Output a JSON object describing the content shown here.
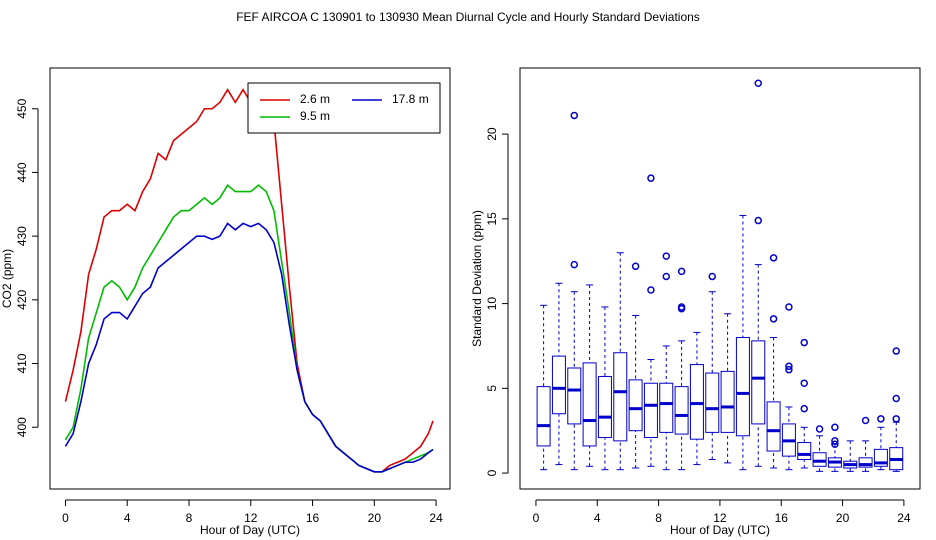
{
  "title": "FEF   AIRCOA C   130901 to 130930   Mean Diurnal Cycle and Hourly Standard Deviations",
  "chart_data": [
    {
      "type": "line",
      "x_label": "Hour of Day (UTC)",
      "y_label": "CO2 (ppm)",
      "xlim": [
        -1,
        24.9
      ],
      "ylim": [
        390.3,
        456.4
      ],
      "xticks": [
        0,
        4,
        8,
        12,
        16,
        20,
        24
      ],
      "yticks": [
        400,
        410,
        420,
        430,
        440,
        450
      ],
      "legend": "topright",
      "x": [
        0,
        0.5,
        1,
        1.5,
        2,
        2.5,
        3,
        3.5,
        4,
        4.5,
        5,
        5.5,
        6,
        6.5,
        7,
        7.5,
        8,
        8.5,
        9,
        9.5,
        10,
        10.5,
        11,
        11.5,
        12,
        12.5,
        13,
        13.5,
        14,
        14.5,
        15,
        15.5,
        16,
        16.5,
        17,
        17.5,
        18,
        18.5,
        19,
        19.5,
        20,
        20.5,
        21,
        21.5,
        22,
        22.5,
        23,
        23.5,
        23.8
      ],
      "series": [
        {
          "name": "2.6 m",
          "color": "#dd0000",
          "values": [
            404,
            409,
            415,
            424,
            428,
            433,
            434,
            434,
            435,
            434,
            437,
            439,
            443,
            442,
            445,
            446,
            447,
            448,
            450,
            450,
            451,
            453,
            451,
            453,
            451,
            452,
            452,
            448,
            435,
            422,
            410,
            404,
            402,
            401,
            399,
            397,
            396,
            395,
            394,
            393.5,
            393,
            393,
            394,
            394.5,
            395,
            396,
            397,
            399,
            401
          ]
        },
        {
          "name": "9.5 m",
          "color": "#00bb00",
          "values": [
            398,
            400,
            406,
            414,
            418,
            422,
            423,
            422,
            420,
            422,
            425,
            427,
            429,
            431,
            433,
            434,
            434,
            435,
            436,
            435,
            436,
            438,
            437,
            437,
            437,
            438,
            437,
            434,
            426,
            418,
            409,
            404,
            402,
            401,
            399,
            397,
            396,
            395,
            394,
            393.5,
            393,
            393,
            393.5,
            394,
            394.5,
            395,
            395.5,
            396,
            396.5
          ]
        },
        {
          "name": "17.8 m",
          "color": "#0000cc",
          "values": [
            397,
            399,
            404,
            410,
            413,
            417,
            418,
            418,
            417,
            419,
            421,
            422,
            425,
            426,
            427,
            428,
            429,
            430,
            430,
            429.5,
            430,
            432,
            431,
            432,
            431.5,
            432,
            431,
            429,
            424,
            416,
            409,
            404,
            402,
            401,
            399,
            397,
            396,
            395,
            394,
            393.5,
            393,
            393,
            393.5,
            394,
            394.5,
            394.5,
            395,
            396,
            396.5
          ]
        }
      ]
    },
    {
      "type": "boxplot",
      "x_label": "Hour of Day (UTC)",
      "y_label": "Standard Deviation (ppm)",
      "xlim": [
        -1.04,
        25.05
      ],
      "ylim": [
        -0.94,
        23.9
      ],
      "xticks": [
        0,
        4,
        8,
        12,
        16,
        20,
        24
      ],
      "yticks": [
        0,
        5,
        10,
        15,
        20
      ],
      "color": "#0000cc",
      "x": [
        0.5,
        1.5,
        2.5,
        3.5,
        4.5,
        5.5,
        6.5,
        7.5,
        8.5,
        9.5,
        10.5,
        11.5,
        12.5,
        13.5,
        14.5,
        15.5,
        16.5,
        17.5,
        18.5,
        19.5,
        20.5,
        21.5,
        22.5,
        23.5
      ],
      "boxes": [
        {
          "whislo": 0.2,
          "q1": 1.6,
          "med": 2.8,
          "q3": 5.1,
          "whishi": 9.9,
          "fliers": []
        },
        {
          "whislo": 0.5,
          "q1": 3.5,
          "med": 5.0,
          "q3": 6.9,
          "whishi": 11.2,
          "fliers": []
        },
        {
          "whislo": 0.2,
          "q1": 2.9,
          "med": 4.9,
          "q3": 6.2,
          "whishi": 10.7,
          "fliers": [
            21.1,
            12.3
          ]
        },
        {
          "whislo": 0.4,
          "q1": 1.6,
          "med": 3.1,
          "q3": 6.5,
          "whishi": 11.1,
          "fliers": []
        },
        {
          "whislo": 0.2,
          "q1": 2.1,
          "med": 3.3,
          "q3": 5.7,
          "whishi": 9.8,
          "fliers": []
        },
        {
          "whislo": 0.2,
          "q1": 1.9,
          "med": 4.8,
          "q3": 7.1,
          "whishi": 13.0,
          "fliers": []
        },
        {
          "whislo": 0.3,
          "q1": 2.5,
          "med": 3.8,
          "q3": 5.5,
          "whishi": 9.3,
          "fliers": [
            12.2
          ]
        },
        {
          "whislo": 0.4,
          "q1": 2.1,
          "med": 4.0,
          "q3": 5.3,
          "whishi": 6.7,
          "fliers": [
            17.4,
            10.8
          ]
        },
        {
          "whislo": 0.2,
          "q1": 2.4,
          "med": 4.1,
          "q3": 5.3,
          "whishi": 7.5,
          "fliers": [
            12.8,
            11.6
          ]
        },
        {
          "whislo": 0.2,
          "q1": 2.3,
          "med": 3.4,
          "q3": 5.1,
          "whishi": 7.8,
          "fliers": [
            11.9,
            9.8,
            9.7
          ]
        },
        {
          "whislo": 0.5,
          "q1": 2.0,
          "med": 4.1,
          "q3": 6.4,
          "whishi": 8.3,
          "fliers": []
        },
        {
          "whislo": 0.8,
          "q1": 2.4,
          "med": 3.8,
          "q3": 5.9,
          "whishi": 10.7,
          "fliers": [
            11.6
          ]
        },
        {
          "whislo": 0.6,
          "q1": 2.4,
          "med": 3.9,
          "q3": 6.0,
          "whishi": 9.4,
          "fliers": []
        },
        {
          "whislo": 0.2,
          "q1": 2.2,
          "med": 4.7,
          "q3": 8.0,
          "whishi": 15.2,
          "fliers": []
        },
        {
          "whislo": 0.4,
          "q1": 2.9,
          "med": 5.6,
          "q3": 7.8,
          "whishi": 12.3,
          "fliers": [
            23.0,
            14.9
          ]
        },
        {
          "whislo": 0.3,
          "q1": 1.3,
          "med": 2.5,
          "q3": 4.2,
          "whishi": 8.0,
          "fliers": [
            12.7,
            9.1
          ]
        },
        {
          "whislo": 0.2,
          "q1": 1.0,
          "med": 1.9,
          "q3": 2.9,
          "whishi": 3.9,
          "fliers": [
            9.8,
            6.3,
            6.1
          ]
        },
        {
          "whislo": 0.3,
          "q1": 0.8,
          "med": 1.1,
          "q3": 1.8,
          "whishi": 2.7,
          "fliers": [
            7.7,
            5.3,
            3.8
          ]
        },
        {
          "whislo": 0.1,
          "q1": 0.4,
          "med": 0.7,
          "q3": 1.2,
          "whishi": 2.2,
          "fliers": [
            2.6
          ]
        },
        {
          "whislo": 0.1,
          "q1": 0.35,
          "med": 0.65,
          "q3": 0.9,
          "whishi": 1.7,
          "fliers": [
            2.7,
            1.9,
            1.7
          ]
        },
        {
          "whislo": 0.1,
          "q1": 0.3,
          "med": 0.5,
          "q3": 0.7,
          "whishi": 1.9,
          "fliers": []
        },
        {
          "whislo": 0.1,
          "q1": 0.35,
          "med": 0.5,
          "q3": 0.9,
          "whishi": 1.9,
          "fliers": [
            3.1
          ]
        },
        {
          "whislo": 0.2,
          "q1": 0.4,
          "med": 0.6,
          "q3": 1.4,
          "whishi": 2.7,
          "fliers": [
            3.2
          ]
        },
        {
          "whislo": 0.1,
          "q1": 0.2,
          "med": 0.8,
          "q3": 1.5,
          "whishi": 3.0,
          "fliers": [
            7.2,
            4.4,
            3.2
          ]
        }
      ]
    }
  ]
}
